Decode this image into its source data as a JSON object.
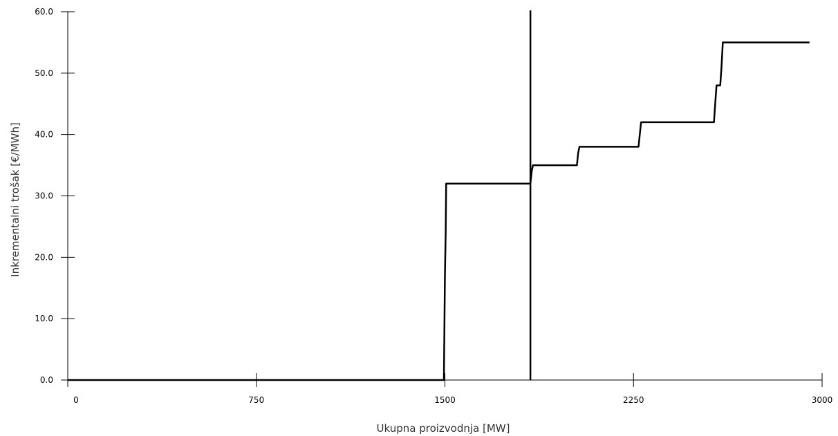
{
  "chart_data": {
    "type": "line",
    "title": "",
    "xlabel": "Ukupna proizvodnja [MW]",
    "ylabel": "Inkrementalni trošak [€/MWh]",
    "xlim": [
      0,
      3000
    ],
    "ylim": [
      0,
      60
    ],
    "x_ticks": [
      0,
      750,
      1500,
      2250,
      3000
    ],
    "x_tick_labels": [
      "0",
      "750",
      "1500",
      "2250",
      "3000"
    ],
    "y_ticks": [
      0,
      10,
      20,
      30,
      40,
      50,
      60
    ],
    "y_tick_labels": [
      "0.0",
      "10.0",
      "20.0",
      "30.0",
      "40.0",
      "50.0",
      "60.0"
    ],
    "grid": false,
    "legend": "none",
    "line_color": "#000000",
    "series": [
      {
        "x": [
          0,
          1496,
          1500,
          1503,
          1505,
          1508,
          1840,
          1845,
          1850,
          2025,
          2030,
          2035,
          2270,
          2275,
          2280,
          2570,
          2575,
          2580,
          2595,
          2600,
          2605,
          2950
        ],
        "y": [
          0,
          0,
          17,
          24,
          32,
          32,
          32,
          34,
          35,
          35,
          37,
          38,
          38,
          40,
          42,
          42,
          45,
          48,
          48,
          51,
          55,
          55
        ]
      }
    ],
    "vertical_line_x": 1840
  }
}
